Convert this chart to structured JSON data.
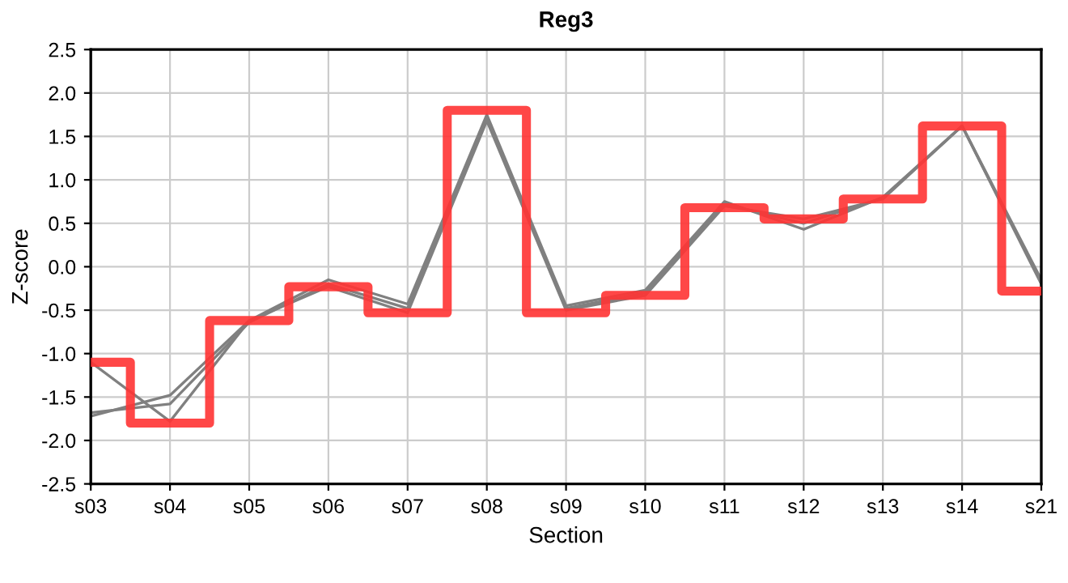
{
  "chart_data": {
    "type": "step",
    "title": "Reg3",
    "xlabel": "Section",
    "ylabel": "Z-score",
    "categories": [
      "s03",
      "s04",
      "s05",
      "s06",
      "s07",
      "s08",
      "s09",
      "s10",
      "s11",
      "s12",
      "s13",
      "s14",
      "s21"
    ],
    "series": [
      {
        "type": "line",
        "color": "#808080",
        "values": [
          -1.1,
          -1.78,
          -0.62,
          -0.23,
          -0.53,
          1.68,
          -0.5,
          -0.33,
          0.7,
          0.55,
          0.78,
          1.62,
          -0.2
        ]
      },
      {
        "type": "line",
        "color": "#808080",
        "values": [
          -1.72,
          -1.48,
          -0.62,
          -0.15,
          -0.43,
          1.75,
          -0.45,
          -0.27,
          0.75,
          0.43,
          0.8,
          1.62,
          -0.15
        ]
      },
      {
        "type": "line",
        "color": "#808080",
        "values": [
          -1.68,
          -1.58,
          -0.64,
          -0.2,
          -0.48,
          1.72,
          -0.48,
          -0.3,
          0.72,
          0.5,
          0.79,
          1.62,
          -0.18
        ]
      },
      {
        "color": "#ff3333",
        "values": [
          -1.1,
          -1.8,
          -0.62,
          -0.23,
          -0.53,
          1.8,
          -0.53,
          -0.33,
          0.68,
          0.55,
          0.78,
          1.62,
          -0.28
        ]
      }
    ],
    "ylim": [
      -2.5,
      2.5
    ],
    "yticks": [
      {
        "value": -2.5,
        "label": "-2.5"
      },
      {
        "value": -2.0,
        "label": "-2.0"
      },
      {
        "value": -1.5,
        "label": "-1.5"
      },
      {
        "value": -1.0,
        "label": "-1.0"
      },
      {
        "value": -0.5,
        "label": "-0.5"
      },
      {
        "value": 0,
        "label": "0.0"
      },
      {
        "value": 0.5,
        "label": "0.5"
      },
      {
        "value": 1.0,
        "label": "1.0"
      },
      {
        "value": 1.5,
        "label": "1.5"
      },
      {
        "value": 2.0,
        "label": "2.0"
      },
      {
        "value": 2.5,
        "label": "2.5"
      }
    ],
    "grid": true
  }
}
